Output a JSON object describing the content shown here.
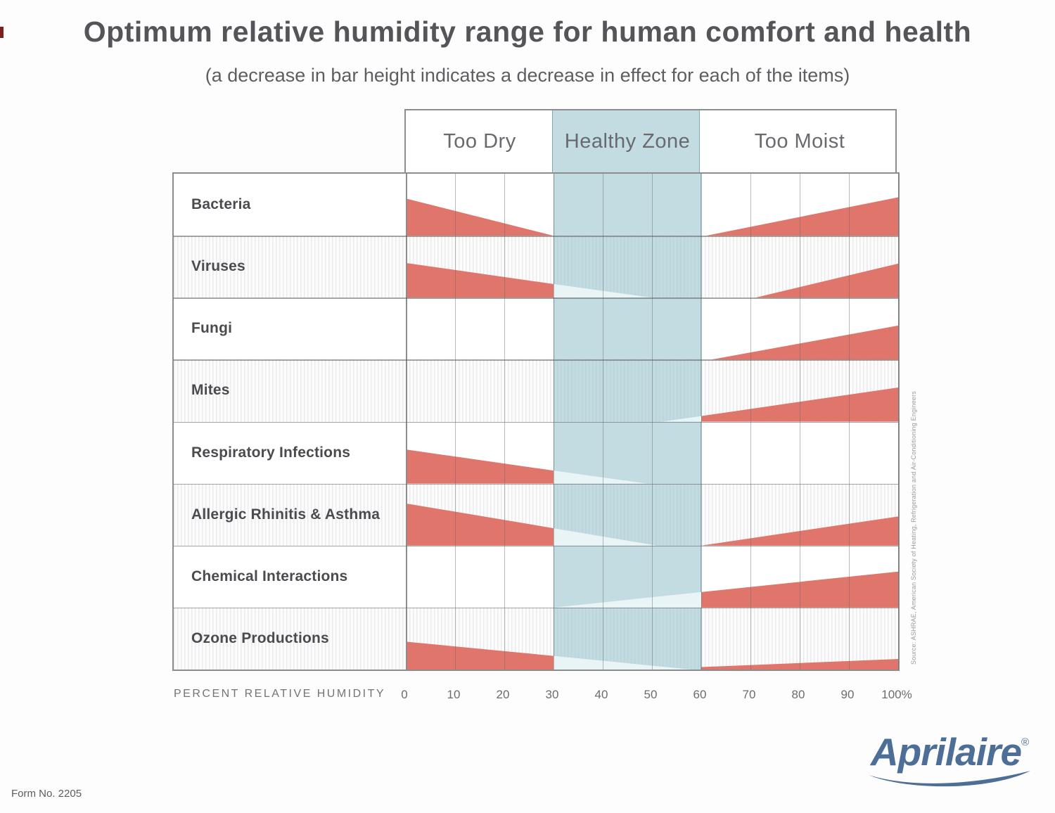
{
  "title": "Optimum relative humidity range for human comfort and health",
  "subtitle": "(a decrease in bar height indicates a decrease in effect for each of the items)",
  "axis_title": "PERCENT RELATIVE HUMIDITY",
  "source_note": "Source: ASHRAE, American Society of Heating, Refrigeration and Air-Conditioning Engineers",
  "logo_text": "Aprilaire",
  "logo_reg": "®",
  "form_number": "Form No. 2205",
  "chart_data": {
    "type": "area",
    "title": "Optimum relative humidity range for human comfort and health",
    "subtitle": "(a decrease in bar height indicates a decrease in effect for each of the items)",
    "xlabel": "PERCENT RELATIVE HUMIDITY",
    "x_range": [
      0,
      100
    ],
    "x_tick_labels": [
      "0",
      "10",
      "20",
      "30",
      "40",
      "50",
      "60",
      "70",
      "80",
      "90",
      "100%"
    ],
    "grid": true,
    "healthy_zone_range": [
      30,
      60
    ],
    "zones": [
      {
        "label": "Too Dry",
        "range": [
          0,
          30
        ]
      },
      {
        "label": "Healthy Zone",
        "range": [
          30,
          60
        ]
      },
      {
        "label": "Too Moist",
        "range": [
          60,
          100
        ]
      }
    ],
    "colors": {
      "bar_red": "#e0766b",
      "bar_pale_in_zone": "#e8f4f5",
      "healthy_zone_band": "rgba(158,198,207,0.62)",
      "grid_line": "#696969",
      "text_dark": "#545559"
    },
    "rows_note": "segments: from/to = % relative humidity; h_from/h_to = bar height as fraction of row height; color pale = portion inside healthy zone",
    "rows": [
      {
        "label": "Bacteria",
        "striped": false,
        "segments": [
          {
            "from": 0,
            "to": 30,
            "h_from": 0.6,
            "h_to": 0.0,
            "color": "red"
          },
          {
            "from": 61,
            "to": 100,
            "h_from": 0.0,
            "h_to": 0.62,
            "color": "red"
          }
        ]
      },
      {
        "label": "Viruses",
        "striped": true,
        "segments": [
          {
            "from": 0,
            "to": 30,
            "h_from": 0.56,
            "h_to": 0.22,
            "color": "red"
          },
          {
            "from": 30,
            "to": 50,
            "h_from": 0.22,
            "h_to": 0.0,
            "color": "pale"
          },
          {
            "from": 71,
            "to": 100,
            "h_from": 0.0,
            "h_to": 0.55,
            "color": "red"
          }
        ]
      },
      {
        "label": "Fungi",
        "striped": false,
        "segments": [
          {
            "from": 62,
            "to": 100,
            "h_from": 0.0,
            "h_to": 0.55,
            "color": "red"
          }
        ]
      },
      {
        "label": "Mites",
        "striped": true,
        "segments": [
          {
            "from": 52,
            "to": 60,
            "h_from": 0.0,
            "h_to": 0.09,
            "color": "pale"
          },
          {
            "from": 60,
            "to": 100,
            "h_from": 0.09,
            "h_to": 0.55,
            "color": "red"
          }
        ]
      },
      {
        "label": "Respiratory Infections",
        "striped": false,
        "segments": [
          {
            "from": 0,
            "to": 30,
            "h_from": 0.55,
            "h_to": 0.21,
            "color": "red"
          },
          {
            "from": 30,
            "to": 49,
            "h_from": 0.21,
            "h_to": 0.0,
            "color": "pale"
          }
        ]
      },
      {
        "label": "Allergic Rhinitis & Asthma",
        "striped": true,
        "segments": [
          {
            "from": 0,
            "to": 30,
            "h_from": 0.68,
            "h_to": 0.28,
            "color": "red"
          },
          {
            "from": 30,
            "to": 51,
            "h_from": 0.28,
            "h_to": 0.0,
            "color": "pale"
          },
          {
            "from": 60,
            "to": 100,
            "h_from": 0.0,
            "h_to": 0.47,
            "color": "red"
          }
        ]
      },
      {
        "label": "Chemical Interactions",
        "striped": false,
        "segments": [
          {
            "from": 30,
            "to": 60,
            "h_from": 0.0,
            "h_to": 0.25,
            "color": "pale"
          },
          {
            "from": 60,
            "to": 100,
            "h_from": 0.25,
            "h_to": 0.58,
            "color": "red"
          }
        ]
      },
      {
        "label": "Ozone Productions",
        "striped": true,
        "segments": [
          {
            "from": 0,
            "to": 30,
            "h_from": 0.45,
            "h_to": 0.22,
            "color": "red"
          },
          {
            "from": 30,
            "to": 58,
            "h_from": 0.22,
            "h_to": 0.0,
            "color": "pale"
          },
          {
            "from": 60,
            "to": 100,
            "h_from": 0.04,
            "h_to": 0.17,
            "color": "red"
          }
        ]
      }
    ]
  }
}
